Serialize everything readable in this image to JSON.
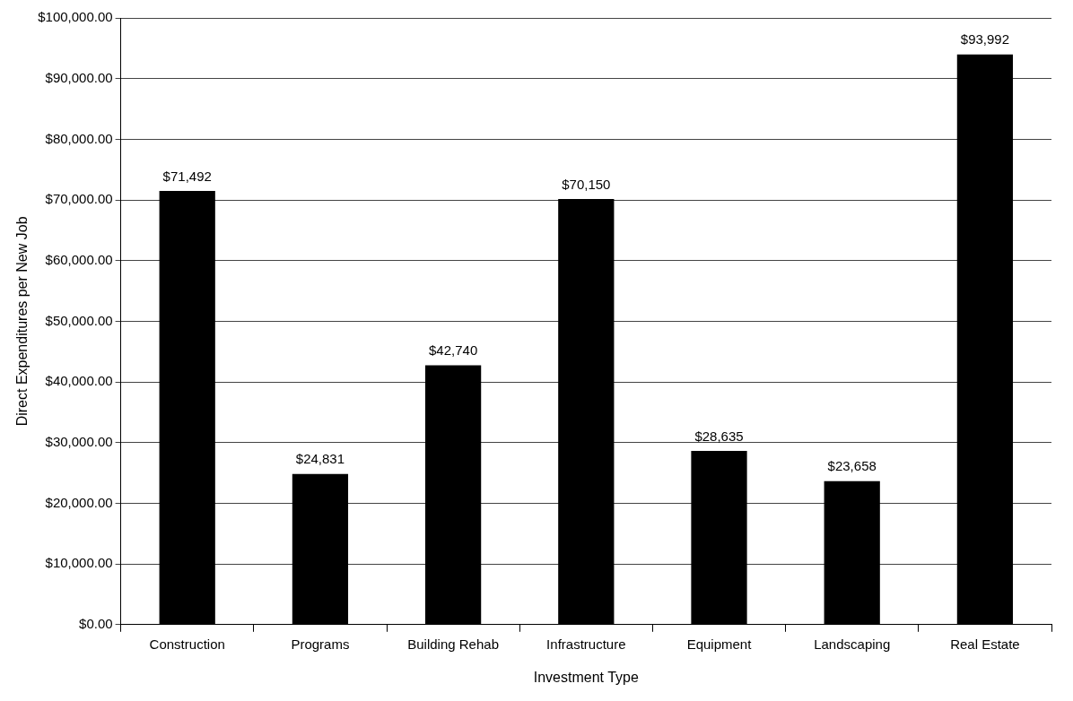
{
  "chart_data": {
    "type": "bar",
    "xlabel": "Investment Type",
    "ylabel": "Direct Expenditures per New Job",
    "categories": [
      "Construction",
      "Programs",
      "Building Rehab",
      "Infrastructure",
      "Equipment",
      "Landscaping",
      "Real Estate"
    ],
    "values": [
      71492,
      24831,
      42740,
      70150,
      28635,
      23658,
      93992
    ],
    "value_labels": [
      "$71,492",
      "$24,831",
      "$42,740",
      "$70,150",
      "$28,635",
      "$23,658",
      "$93,992"
    ],
    "color": "#000000",
    "ylim": [
      0,
      100000
    ],
    "yticks": [
      {
        "value": 0,
        "label": "$0.00"
      },
      {
        "value": 10000,
        "label": "$10,000.00"
      },
      {
        "value": 20000,
        "label": "$20,000.00"
      },
      {
        "value": 30000,
        "label": "$30,000.00"
      },
      {
        "value": 40000,
        "label": "$40,000.00"
      },
      {
        "value": 50000,
        "label": "$50,000.00"
      },
      {
        "value": 60000,
        "label": "$60,000.00"
      },
      {
        "value": 70000,
        "label": "$70,000.00"
      },
      {
        "value": 80000,
        "label": "$80,000.00"
      },
      {
        "value": 90000,
        "label": "$90,000.00"
      },
      {
        "value": 100000,
        "label": "$100,000.00"
      }
    ],
    "grid": "y"
  }
}
